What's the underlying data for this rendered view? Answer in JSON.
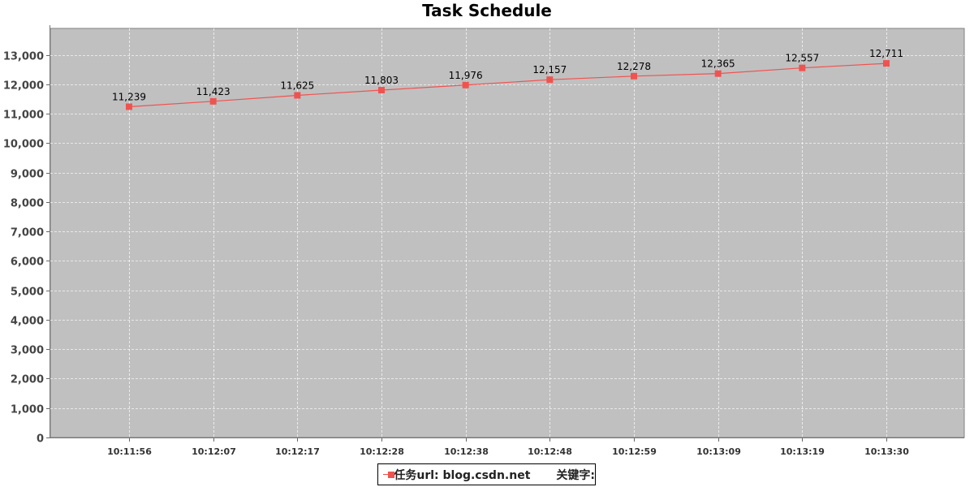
{
  "chart_data": {
    "type": "line",
    "title": "Task Schedule",
    "xlabel": "",
    "ylabel": "",
    "categories": [
      "10:11:56",
      "10:12:07",
      "10:12:17",
      "10:12:28",
      "10:12:38",
      "10:12:48",
      "10:12:59",
      "10:13:09",
      "10:13:19",
      "10:13:30"
    ],
    "series": [
      {
        "name": "任务url: blog.csdn.net",
        "values": [
          11239,
          11423,
          11625,
          11803,
          11976,
          12157,
          12278,
          12365,
          12557,
          12711
        ],
        "labels": [
          "11,239",
          "11,423",
          "11,625",
          "11,803",
          "11,976",
          "12,157",
          "12,278",
          "12,365",
          "12,557",
          "12,711"
        ],
        "color": "#ef5350"
      }
    ],
    "ylim": [
      0,
      13900
    ],
    "yticks": [
      0,
      1000,
      2000,
      3000,
      4000,
      5000,
      6000,
      7000,
      8000,
      9000,
      10000,
      11000,
      12000,
      13000
    ],
    "ytick_labels": [
      "0",
      "1,000",
      "2,000",
      "3,000",
      "4,000",
      "5,000",
      "6,000",
      "7,000",
      "8,000",
      "9,000",
      "10,000",
      "11,000",
      "12,000",
      "13,000"
    ],
    "grid": true,
    "plot_background": "#c0c0c0",
    "legend": {
      "position": "bottom-center",
      "series_label": "任务url: blog.csdn.net",
      "keyword_label": "关键字:"
    }
  }
}
